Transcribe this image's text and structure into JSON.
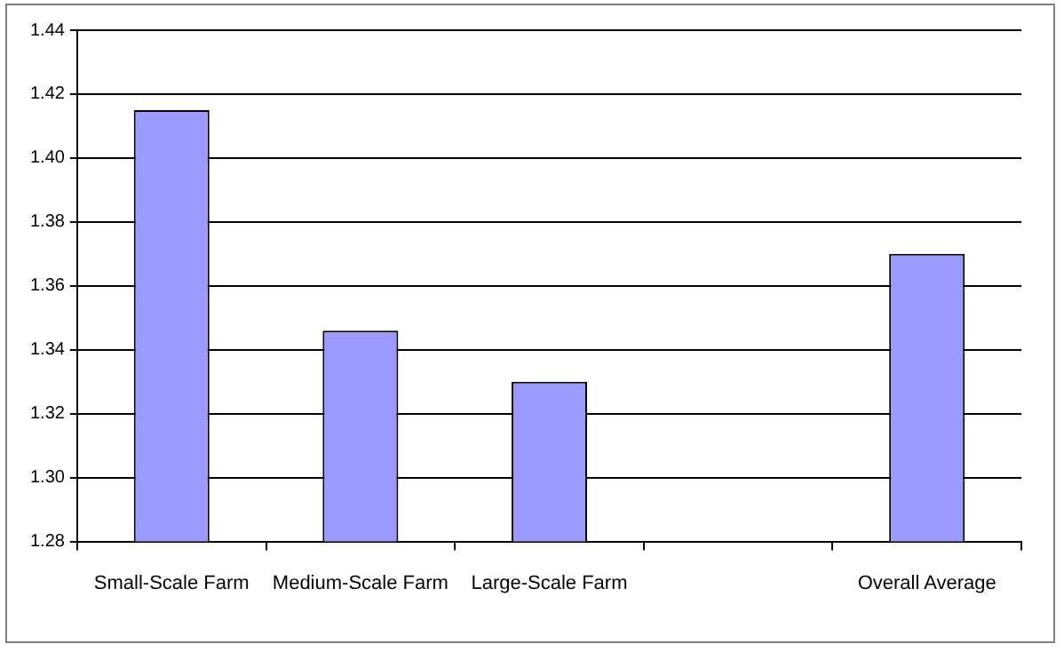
{
  "chart_data": {
    "type": "bar",
    "categories": [
      "Small-Scale Farm",
      "Medium-Scale Farm",
      "Large-Scale Farm",
      null,
      "Overall Average"
    ],
    "values": [
      1.415,
      1.346,
      1.33,
      null,
      1.37
    ],
    "color": "#9999ff",
    "ylim": [
      1.28,
      1.44
    ],
    "yticks": [
      {
        "value": 1.28,
        "label": "1.28"
      },
      {
        "value": 1.3,
        "label": "1.30"
      },
      {
        "value": 1.32,
        "label": "1.32"
      },
      {
        "value": 1.34,
        "label": "1.34"
      },
      {
        "value": 1.36,
        "label": "1.36"
      },
      {
        "value": 1.38,
        "label": "1.38"
      },
      {
        "value": 1.4,
        "label": "1.40"
      },
      {
        "value": 1.42,
        "label": "1.42"
      },
      {
        "value": 1.44,
        "label": "1.44"
      }
    ],
    "grid": "y",
    "legend": false
  }
}
